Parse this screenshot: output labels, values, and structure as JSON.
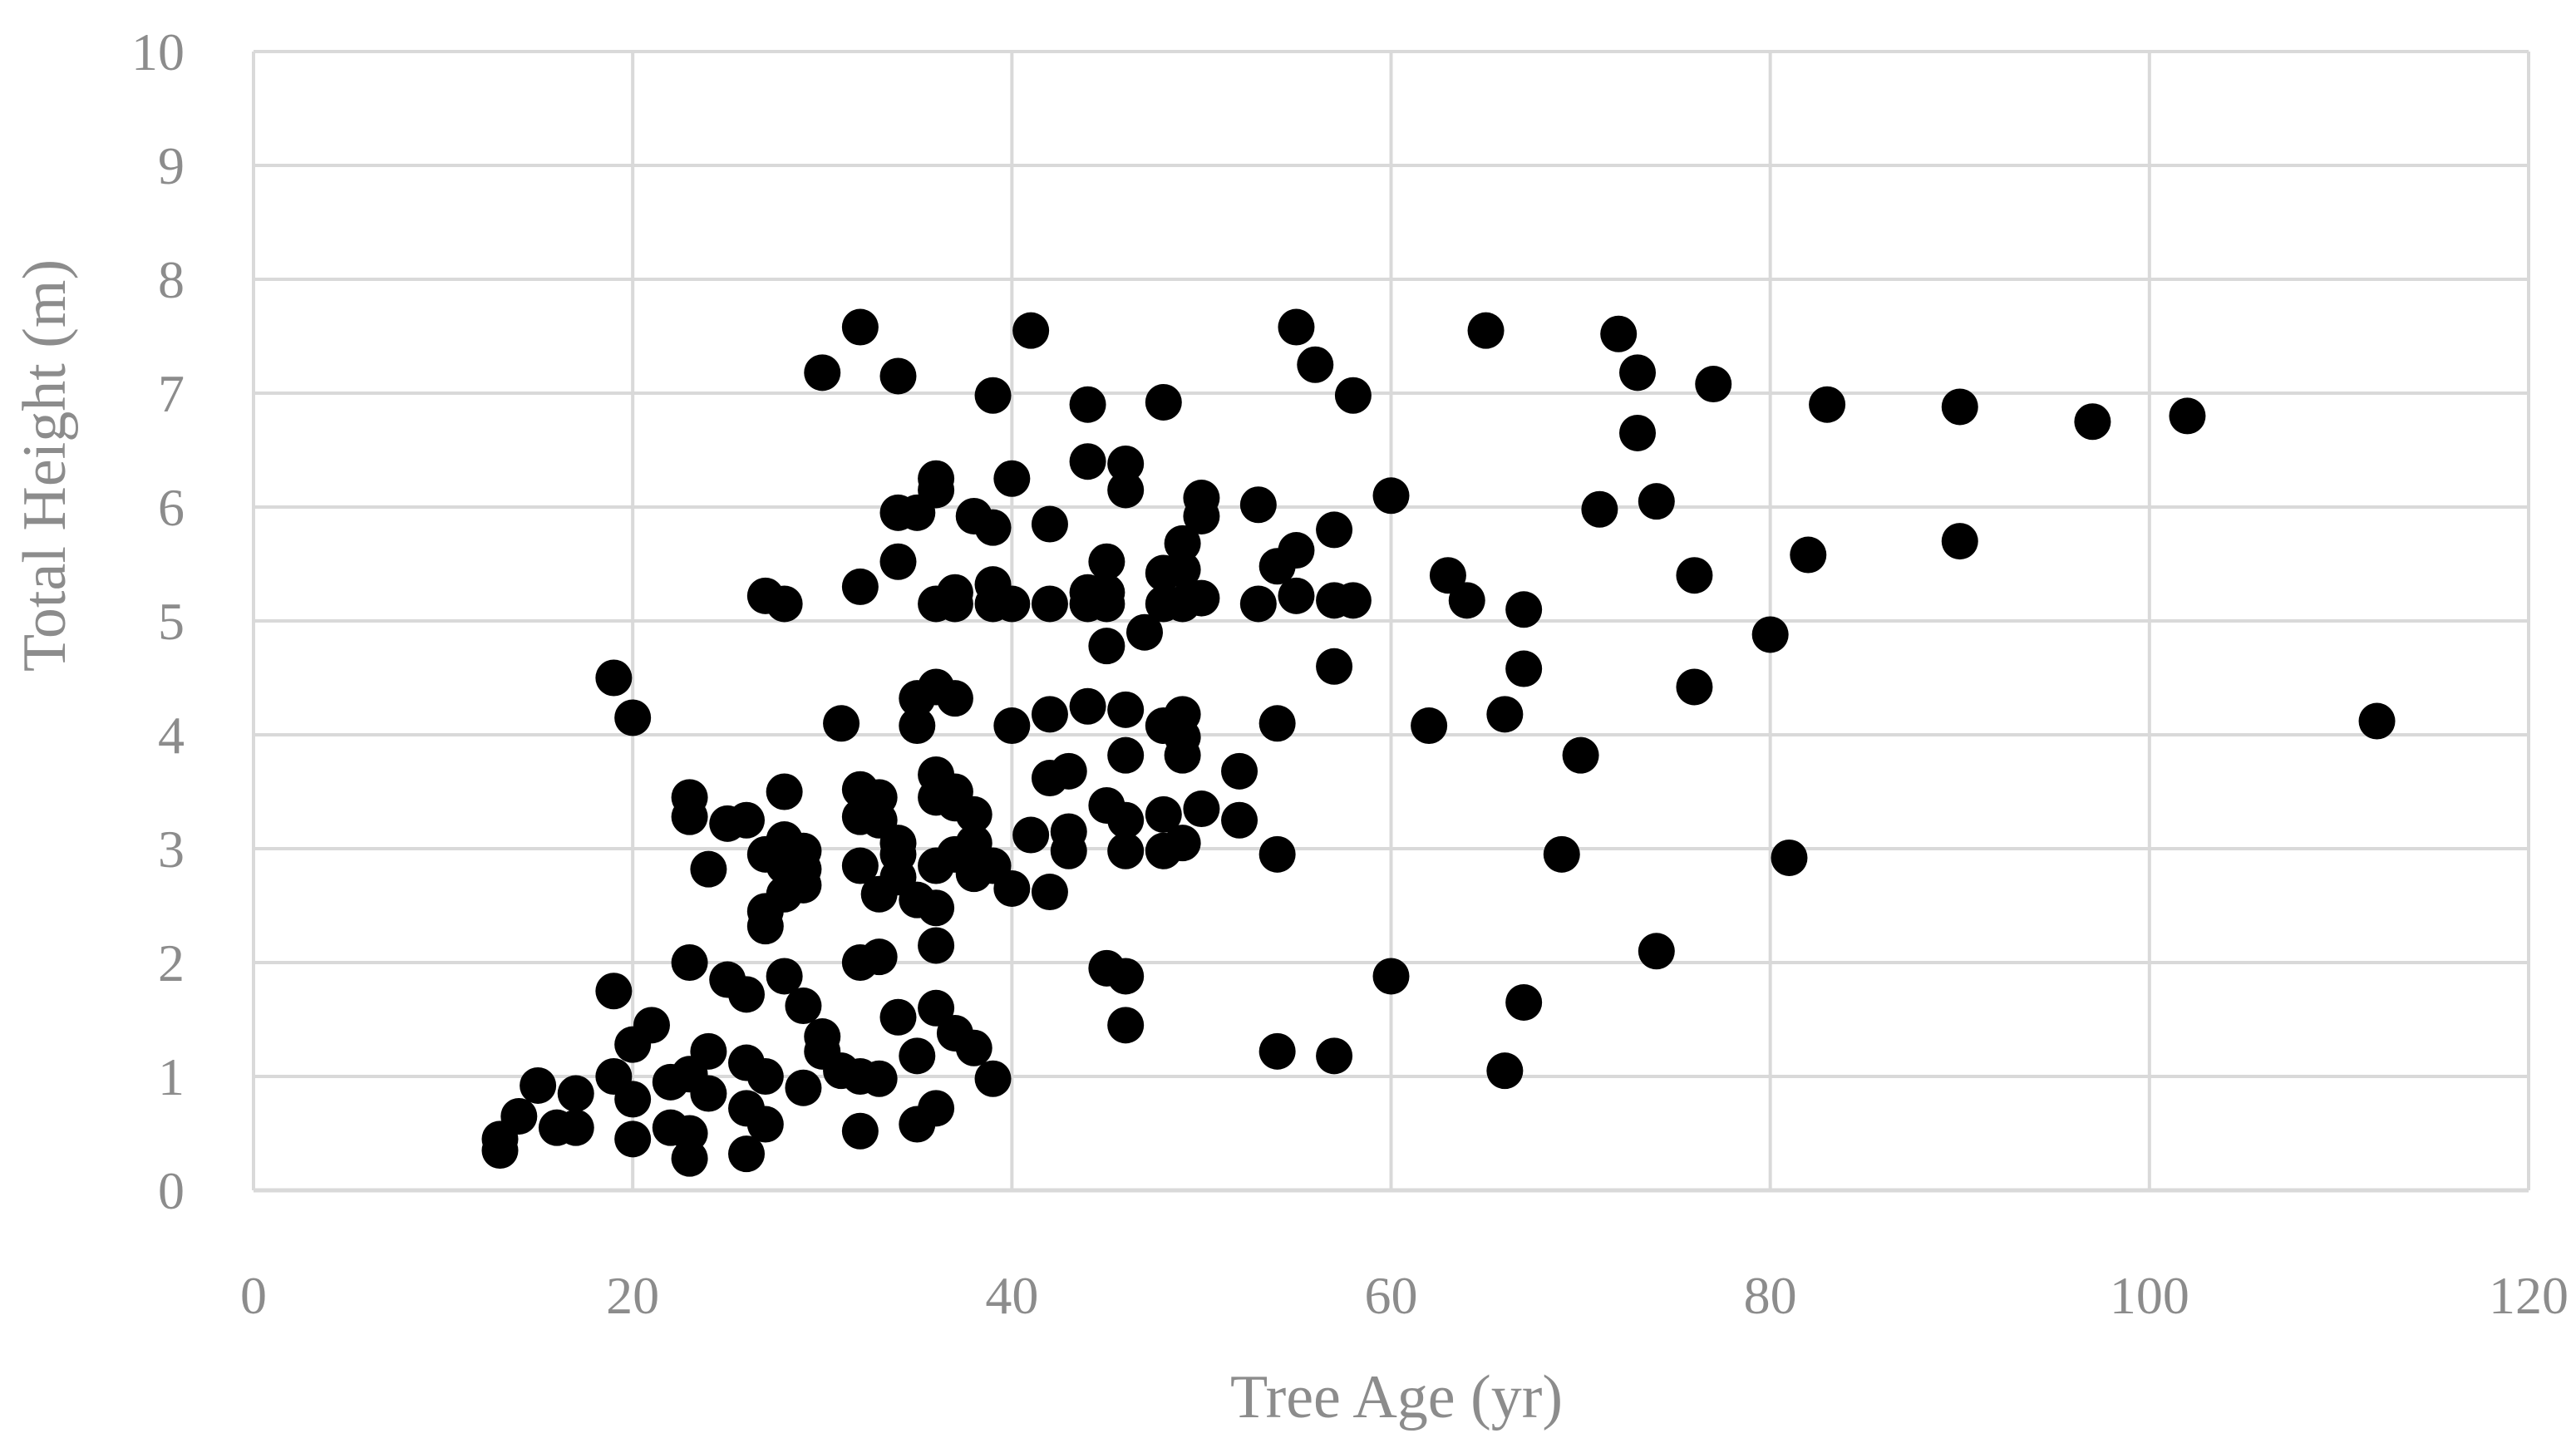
{
  "chart_data": {
    "type": "scatter",
    "title": "",
    "xlabel": "Tree Age (yr)",
    "ylabel": "Total Height (m)",
    "xlim": [
      0,
      120
    ],
    "ylim": [
      0,
      10
    ],
    "xticks": [
      0,
      20,
      40,
      60,
      80,
      100,
      120
    ],
    "yticks": [
      0,
      1,
      2,
      3,
      4,
      5,
      6,
      7,
      8,
      9,
      10
    ],
    "grid": true,
    "marker_color": "#000000",
    "grid_color": "#d9d9d9",
    "text_color": "#8c8c8c",
    "series": [
      {
        "points": [
          [
            13,
            0.45
          ],
          [
            13,
            0.35
          ],
          [
            14,
            0.65
          ],
          [
            15,
            0.92
          ],
          [
            16,
            0.55
          ],
          [
            17,
            0.85
          ],
          [
            17,
            0.55
          ],
          [
            19,
            1.75
          ],
          [
            19,
            4.5
          ],
          [
            19,
            1.0
          ],
          [
            20,
            4.15
          ],
          [
            20,
            1.28
          ],
          [
            20,
            0.8
          ],
          [
            20,
            0.45
          ],
          [
            21,
            1.45
          ],
          [
            22,
            0.95
          ],
          [
            22,
            0.55
          ],
          [
            23,
            3.45
          ],
          [
            23,
            3.28
          ],
          [
            23,
            2.0
          ],
          [
            23,
            1.02
          ],
          [
            23,
            0.5
          ],
          [
            23,
            0.28
          ],
          [
            24,
            2.82
          ],
          [
            24,
            1.22
          ],
          [
            24,
            0.85
          ],
          [
            25,
            3.22
          ],
          [
            25,
            1.85
          ],
          [
            26,
            3.25
          ],
          [
            26,
            1.72
          ],
          [
            26,
            1.12
          ],
          [
            26,
            0.72
          ],
          [
            26,
            0.32
          ],
          [
            27,
            5.22
          ],
          [
            27,
            2.95
          ],
          [
            27,
            2.45
          ],
          [
            27,
            2.32
          ],
          [
            27,
            1.0
          ],
          [
            27,
            0.58
          ],
          [
            28,
            5.15
          ],
          [
            28,
            3.5
          ],
          [
            28,
            3.08
          ],
          [
            28,
            2.85
          ],
          [
            28,
            2.6
          ],
          [
            28,
            1.88
          ],
          [
            29,
            2.98
          ],
          [
            29,
            2.82
          ],
          [
            29,
            2.68
          ],
          [
            29,
            1.62
          ],
          [
            29,
            0.9
          ],
          [
            30,
            7.18
          ],
          [
            30,
            1.35
          ],
          [
            30,
            1.22
          ],
          [
            31,
            4.1
          ],
          [
            31,
            1.05
          ],
          [
            32,
            7.58
          ],
          [
            32,
            5.3
          ],
          [
            32,
            3.52
          ],
          [
            32,
            3.28
          ],
          [
            32,
            2.85
          ],
          [
            32,
            2.0
          ],
          [
            32,
            1.0
          ],
          [
            32,
            0.52
          ],
          [
            33,
            3.45
          ],
          [
            33,
            3.25
          ],
          [
            33,
            2.6
          ],
          [
            33,
            2.05
          ],
          [
            33,
            0.98
          ],
          [
            34,
            7.15
          ],
          [
            34,
            5.95
          ],
          [
            34,
            5.52
          ],
          [
            34,
            3.05
          ],
          [
            34,
            2.95
          ],
          [
            34,
            2.75
          ],
          [
            34,
            1.52
          ],
          [
            35,
            5.95
          ],
          [
            35,
            4.32
          ],
          [
            35,
            4.08
          ],
          [
            35,
            2.55
          ],
          [
            35,
            1.18
          ],
          [
            35,
            0.58
          ],
          [
            36,
            6.25
          ],
          [
            36,
            6.15
          ],
          [
            36,
            5.15
          ],
          [
            36,
            4.42
          ],
          [
            36,
            3.65
          ],
          [
            36,
            3.45
          ],
          [
            36,
            2.85
          ],
          [
            36,
            2.48
          ],
          [
            36,
            2.15
          ],
          [
            36,
            1.6
          ],
          [
            36,
            0.72
          ],
          [
            37,
            5.25
          ],
          [
            37,
            5.15
          ],
          [
            37,
            4.32
          ],
          [
            37,
            3.5
          ],
          [
            37,
            3.4
          ],
          [
            37,
            2.95
          ],
          [
            37,
            1.38
          ],
          [
            38,
            5.92
          ],
          [
            38,
            3.3
          ],
          [
            38,
            3.05
          ],
          [
            38,
            2.78
          ],
          [
            38,
            1.25
          ],
          [
            39,
            6.98
          ],
          [
            39,
            5.82
          ],
          [
            39,
            5.32
          ],
          [
            39,
            5.15
          ],
          [
            39,
            2.85
          ],
          [
            39,
            0.98
          ],
          [
            40,
            6.25
          ],
          [
            40,
            5.15
          ],
          [
            40,
            4.08
          ],
          [
            40,
            2.65
          ],
          [
            41,
            7.55
          ],
          [
            41,
            3.12
          ],
          [
            42,
            5.85
          ],
          [
            42,
            5.15
          ],
          [
            42,
            4.18
          ],
          [
            42,
            3.62
          ],
          [
            42,
            2.62
          ],
          [
            43,
            3.68
          ],
          [
            43,
            3.15
          ],
          [
            43,
            2.98
          ],
          [
            44,
            6.9
          ],
          [
            44,
            6.4
          ],
          [
            44,
            5.25
          ],
          [
            44,
            5.15
          ],
          [
            44,
            4.25
          ],
          [
            45,
            5.52
          ],
          [
            45,
            5.25
          ],
          [
            45,
            5.15
          ],
          [
            45,
            4.78
          ],
          [
            45,
            3.38
          ],
          [
            45,
            1.95
          ],
          [
            46,
            6.38
          ],
          [
            46,
            6.15
          ],
          [
            46,
            4.22
          ],
          [
            46,
            3.82
          ],
          [
            46,
            3.25
          ],
          [
            46,
            2.98
          ],
          [
            46,
            1.88
          ],
          [
            46,
            1.45
          ],
          [
            47,
            4.9
          ],
          [
            48,
            6.92
          ],
          [
            48,
            5.42
          ],
          [
            48,
            5.15
          ],
          [
            48,
            4.08
          ],
          [
            48,
            3.3
          ],
          [
            48,
            2.98
          ],
          [
            49,
            5.68
          ],
          [
            49,
            5.45
          ],
          [
            49,
            5.15
          ],
          [
            49,
            4.18
          ],
          [
            49,
            3.98
          ],
          [
            49,
            3.82
          ],
          [
            49,
            3.05
          ],
          [
            50,
            6.08
          ],
          [
            50,
            5.92
          ],
          [
            50,
            5.2
          ],
          [
            50,
            3.35
          ],
          [
            52,
            3.68
          ],
          [
            52,
            3.25
          ],
          [
            53,
            6.02
          ],
          [
            53,
            5.15
          ],
          [
            54,
            5.48
          ],
          [
            54,
            4.1
          ],
          [
            54,
            2.95
          ],
          [
            54,
            1.22
          ],
          [
            55,
            7.58
          ],
          [
            55,
            5.62
          ],
          [
            55,
            5.22
          ],
          [
            56,
            7.25
          ],
          [
            57,
            5.8
          ],
          [
            57,
            5.18
          ],
          [
            57,
            4.6
          ],
          [
            57,
            1.18
          ],
          [
            58,
            6.98
          ],
          [
            58,
            5.18
          ],
          [
            60,
            6.1
          ],
          [
            60,
            1.88
          ],
          [
            62,
            4.08
          ],
          [
            63,
            5.4
          ],
          [
            64,
            5.18
          ],
          [
            65,
            7.55
          ],
          [
            66,
            4.18
          ],
          [
            66,
            1.05
          ],
          [
            67,
            5.1
          ],
          [
            67,
            4.58
          ],
          [
            67,
            1.65
          ],
          [
            69,
            2.95
          ],
          [
            70,
            3.82
          ],
          [
            71,
            5.98
          ],
          [
            72,
            7.52
          ],
          [
            73,
            7.18
          ],
          [
            73,
            6.65
          ],
          [
            74,
            6.05
          ],
          [
            74,
            2.1
          ],
          [
            76,
            5.4
          ],
          [
            76,
            4.42
          ],
          [
            77,
            7.08
          ],
          [
            80,
            4.88
          ],
          [
            81,
            2.92
          ],
          [
            82,
            5.58
          ],
          [
            83,
            6.9
          ],
          [
            90,
            6.88
          ],
          [
            90,
            5.7
          ],
          [
            97,
            6.75
          ],
          [
            102,
            6.8
          ],
          [
            112,
            4.12
          ]
        ]
      }
    ]
  }
}
